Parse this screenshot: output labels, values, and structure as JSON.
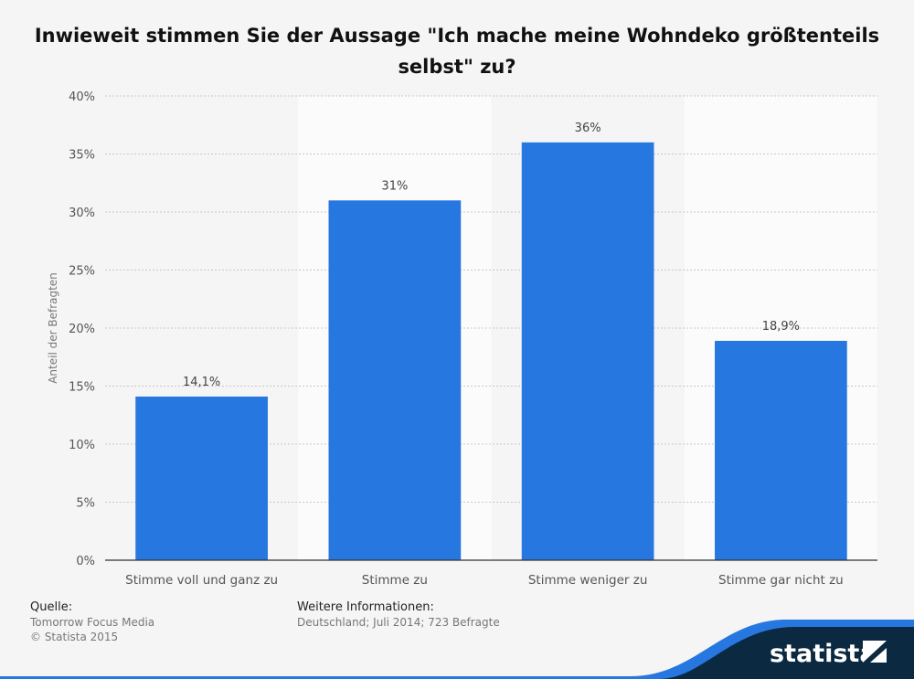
{
  "title": "Inwieweit stimmen Sie der Aussage \"Ich mache meine Wohndeko größtenteils selbst\" zu?",
  "chart_data": {
    "type": "bar",
    "categories": [
      "Stimme voll und ganz zu",
      "Stimme zu",
      "Stimme weniger zu",
      "Stimme gar nicht zu"
    ],
    "values": [
      14.1,
      31,
      36,
      18.9
    ],
    "value_labels": [
      "14,1%",
      "31%",
      "36%",
      "18,9%"
    ],
    "ylabel": "Anteil der Befragten",
    "ylim": [
      0,
      40
    ],
    "yticks": [
      0,
      5,
      10,
      15,
      20,
      25,
      30,
      35,
      40
    ],
    "ytick_labels": [
      "0%",
      "5%",
      "10%",
      "15%",
      "20%",
      "25%",
      "30%",
      "35%",
      "40%"
    ],
    "grid": true,
    "bar_color": "#2777e0"
  },
  "footer": {
    "source_heading": "Quelle:",
    "source_lines": [
      "Tomorrow Focus Media",
      "© Statista 2015"
    ],
    "info_heading": "Weitere Informationen:",
    "info_lines": [
      "Deutschland; Juli 2014; 723 Befragte"
    ]
  },
  "brand": {
    "name": "statista",
    "dark_color": "#0b2940",
    "accent_color": "#2777e0"
  }
}
